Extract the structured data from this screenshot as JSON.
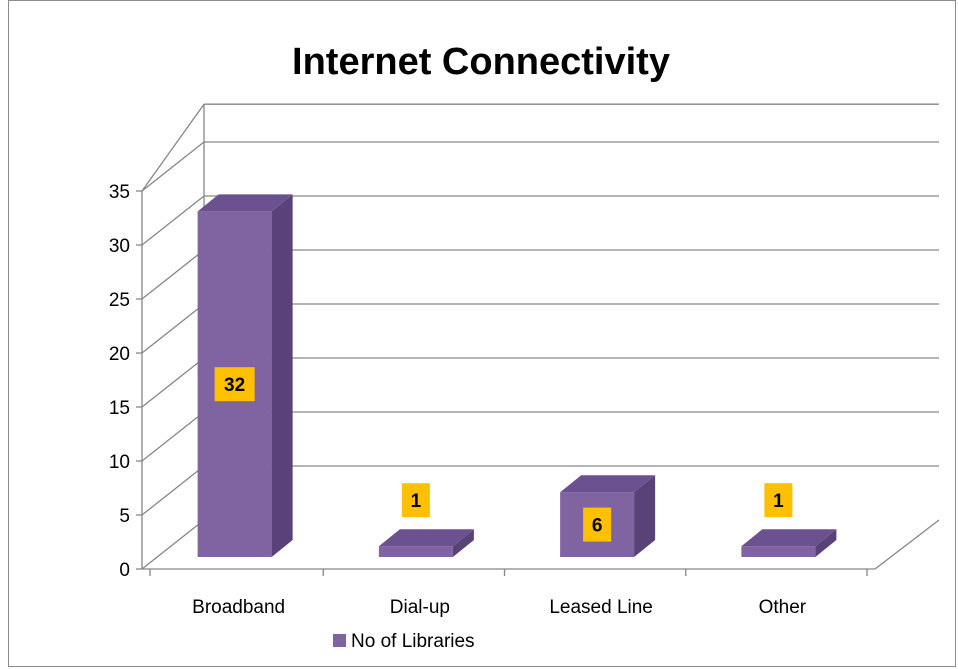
{
  "chart_data": {
    "type": "bar",
    "title": "Internet Connectivity",
    "categories": [
      "Broadband",
      "Dial-up",
      "Leased Line",
      "Other"
    ],
    "series": [
      {
        "name": "No of Libraries",
        "values": [
          32,
          1,
          6,
          1
        ]
      }
    ],
    "data_labels": [
      "32",
      "1",
      "6",
      "1"
    ],
    "y_ticks": [
      "0",
      "5",
      "10",
      "15",
      "20",
      "25",
      "30",
      "35"
    ],
    "ylim": [
      0,
      35
    ],
    "grid": true,
    "legend": "bottom",
    "style": "3d-column",
    "colors": {
      "bar_front": "#8064a2",
      "bar_side": "#584277",
      "bar_top": "#6b5190",
      "label_bg": "#ffc000",
      "grid": "#868686"
    }
  }
}
